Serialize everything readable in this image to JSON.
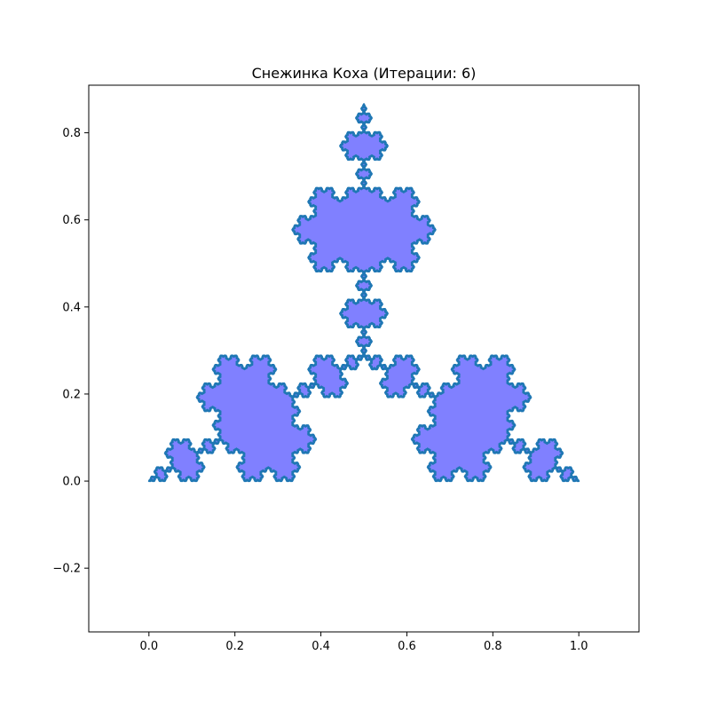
{
  "chart_data": {
    "type": "area",
    "title": "Снежинка Коха (Итерации: 6)",
    "xlabel": "",
    "ylabel": "",
    "iterations": 6,
    "start_vertices": [
      [
        0,
        0
      ],
      [
        1,
        0
      ],
      [
        0.5,
        0.8660254
      ]
    ],
    "xlim": [
      -0.14,
      1.14
    ],
    "ylim": [
      -0.3464,
      0.9093
    ],
    "xticks": [
      0.0,
      0.2,
      0.4,
      0.6,
      0.8,
      1.0
    ],
    "xtick_labels": [
      "0.0",
      "0.2",
      "0.4",
      "0.6",
      "0.8",
      "1.0"
    ],
    "yticks": [
      -0.2,
      0.0,
      0.2,
      0.4,
      0.6,
      0.8
    ],
    "ytick_labels": [
      "−0.2",
      "0.0",
      "0.2",
      "0.4",
      "0.6",
      "0.8"
    ],
    "grid": false,
    "fill_color": "#8080ff",
    "line_color": "#1f77b4"
  }
}
